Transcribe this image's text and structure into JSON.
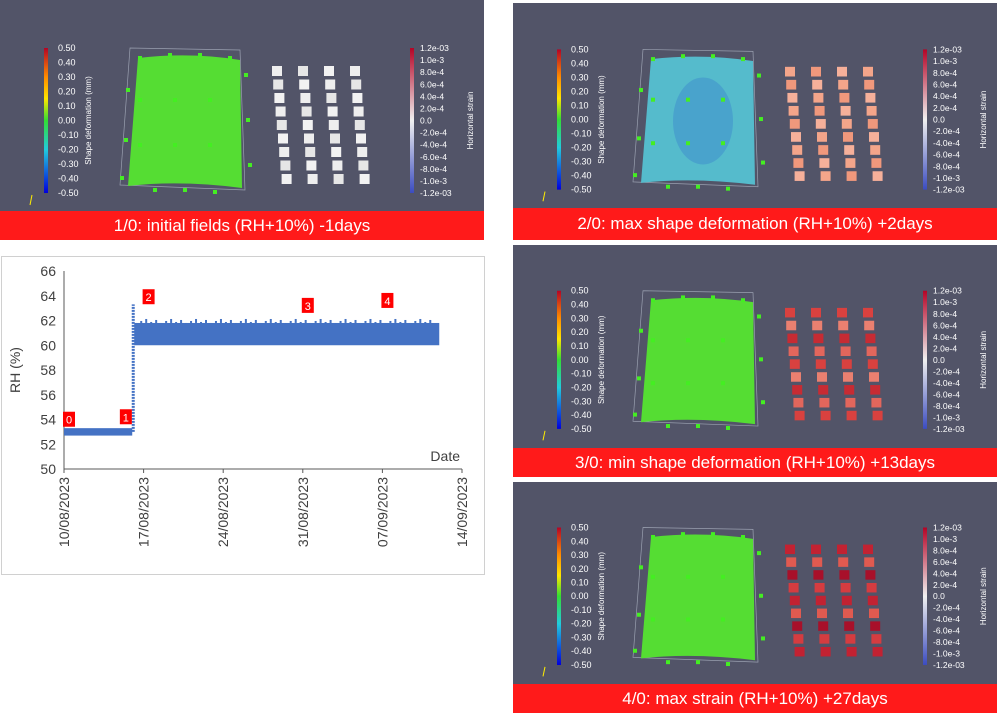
{
  "colors": {
    "panel_bg": "#525468",
    "caption_bg": "#ff1a1a",
    "caption_text": "#ffffff",
    "series": "#4472c4",
    "marker_bg": "#ff0000",
    "surface_green": "#55dd33",
    "surface_blue": "#55bbcc",
    "point_green": "#44ee22"
  },
  "panels": [
    {
      "caption": "1/0: initial fields (RH+10%) -1days",
      "surface": "green",
      "squares": "white",
      "left_bar": {
        "label": "Shape deformation (mm)",
        "ticks": [
          "0.50",
          "0.40",
          "0.30",
          "0.20",
          "0.10",
          "0.00",
          "-0.10",
          "-0.20",
          "-0.30",
          "-0.40",
          "-0.50"
        ]
      },
      "right_bar": {
        "label": "Horizontal strain",
        "ticks": [
          "1.2e-03",
          "1.0e-3",
          "8.0e-4",
          "6.0e-4",
          "4.0e-4",
          "2.0e-4",
          "0.0",
          "-2.0e-4",
          "-4.0e-4",
          "-6.0e-4",
          "-8.0e-4",
          "-1.0e-3",
          "-1.2e-03"
        ]
      }
    },
    {
      "caption": "2/0: max shape deformation (RH+10%) +2days",
      "surface": "blue",
      "squares": "salmon",
      "left_bar": {
        "label": "Shape deformation (mm)",
        "ticks": [
          "0.50",
          "0.40",
          "0.30",
          "0.20",
          "0.10",
          "0.00",
          "-0.10",
          "-0.20",
          "-0.30",
          "-0.40",
          "-0.50"
        ]
      },
      "right_bar": {
        "label": "Horizontal strain",
        "ticks": [
          "1.2e-03",
          "1.0e-3",
          "8.0e-4",
          "6.0e-4",
          "4.0e-4",
          "2.0e-4",
          "0.0",
          "-2.0e-4",
          "-4.0e-4",
          "-6.0e-4",
          "-8.0e-4",
          "-1.0e-3",
          "-1.2e-03"
        ]
      }
    },
    {
      "caption": "3/0: min shape deformation (RH+10%) +13days",
      "surface": "green",
      "squares": "red",
      "left_bar": {
        "label": "Shape deformation (mm)",
        "ticks": [
          "0.50",
          "0.40",
          "0.30",
          "0.20",
          "0.10",
          "0.00",
          "-0.10",
          "-0.20",
          "-0.30",
          "-0.40",
          "-0.50"
        ]
      },
      "right_bar": {
        "label": "Horizontal strain",
        "ticks": [
          "1.2e-03",
          "1.0e-3",
          "8.0e-4",
          "6.0e-4",
          "4.0e-4",
          "2.0e-4",
          "0.0",
          "-2.0e-4",
          "-4.0e-4",
          "-6.0e-4",
          "-8.0e-4",
          "-1.0e-3",
          "-1.2e-03"
        ]
      }
    },
    {
      "caption": "4/0: max strain (RH+10%) +27days",
      "surface": "green",
      "squares": "darkred",
      "left_bar": {
        "label": "Shape deformation (mm)",
        "ticks": [
          "0.50",
          "0.40",
          "0.30",
          "0.20",
          "0.10",
          "0.00",
          "-0.10",
          "-0.20",
          "-0.30",
          "-0.40",
          "-0.50"
        ]
      },
      "right_bar": {
        "label": "Horizontal strain",
        "ticks": [
          "1.2e-03",
          "1.0e-3",
          "8.0e-4",
          "6.0e-4",
          "4.0e-4",
          "2.0e-4",
          "0.0",
          "-2.0e-4",
          "-4.0e-4",
          "-6.0e-4",
          "-8.0e-4",
          "-1.0e-3",
          "-1.2e-03"
        ]
      }
    }
  ],
  "chart_data": {
    "type": "scatter",
    "title": "",
    "xlabel": "Date",
    "ylabel": "RH (%)",
    "ylim": [
      50,
      66
    ],
    "yticks": [
      50,
      52,
      54,
      56,
      58,
      60,
      62,
      64,
      66
    ],
    "xlim": [
      "2023-08-10",
      "2023-09-14"
    ],
    "xtick_labels": [
      "10/08/2023",
      "17/08/2023",
      "24/08/2023",
      "31/08/2023",
      "07/09/2023",
      "14/09/2023"
    ],
    "grid": false,
    "legend": "none",
    "series": [
      {
        "segments": [
          {
            "x_start": "2023-08-10",
            "x_end": "2023-08-16",
            "y_center": 53.0,
            "y_band": [
              52.7,
              53.3
            ]
          },
          {
            "x": "2023-08-16",
            "y_from": 53.0,
            "y_to": 63.3
          },
          {
            "x_start": "2023-08-16",
            "x_end": "2023-09-12",
            "y_center": 60.8,
            "y_band": [
              60.0,
              61.8
            ]
          }
        ]
      }
    ],
    "annotations": [
      {
        "label": "0",
        "x": "2023-08-10",
        "y": 53.9
      },
      {
        "label": "1",
        "x": "2023-08-15",
        "y": 54.1
      },
      {
        "label": "2",
        "x": "2023-08-17",
        "y": 63.8
      },
      {
        "label": "3",
        "x": "2023-08-31",
        "y": 63.1
      },
      {
        "label": "4",
        "x": "2023-09-07",
        "y": 63.5
      }
    ]
  }
}
